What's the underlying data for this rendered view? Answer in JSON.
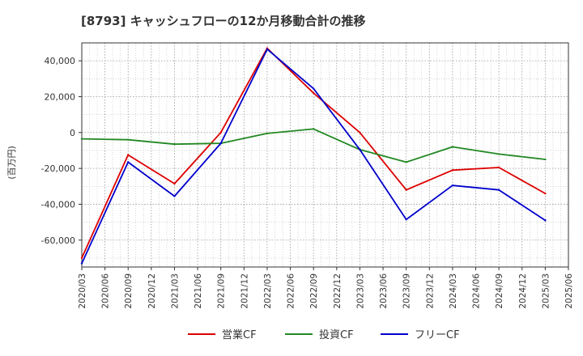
{
  "chart_data": {
    "type": "line",
    "title": "[8793]  キャッシュフローの12か月移動合計の推移",
    "ylabel": "(百万円)",
    "xlabel": "",
    "ylim": [
      -75000,
      50000
    ],
    "y_ticks": [
      40000,
      20000,
      0,
      -20000,
      -40000,
      -60000
    ],
    "y_tick_labels": [
      "40,000",
      "20,000",
      "0",
      "-20,000",
      "-40,000",
      "-60,000"
    ],
    "x_ticks": [
      "2020/03",
      "2020/06",
      "2020/09",
      "2020/12",
      "2021/03",
      "2021/06",
      "2021/09",
      "2021/12",
      "2022/03",
      "2022/06",
      "2022/09",
      "2022/12",
      "2023/03",
      "2023/06",
      "2023/09",
      "2023/12",
      "2024/03",
      "2024/06",
      "2024/09",
      "2024/12",
      "2025/03",
      "2025/06"
    ],
    "grid": true,
    "legend_position": "bottom",
    "series": [
      {
        "name": "営業CF",
        "color": "#dd0000",
        "x": [
          "2020/03",
          "2020/09",
          "2021/03",
          "2021/09",
          "2022/03",
          "2022/09",
          "2023/03",
          "2023/09",
          "2024/03",
          "2024/09",
          "2025/03"
        ],
        "values": [
          -70000,
          -12500,
          -28500,
          0,
          47000,
          22000,
          0,
          -32000,
          -21000,
          -19500,
          -34000
        ]
      },
      {
        "name": "投資CF",
        "color": "#228822",
        "x": [
          "2020/03",
          "2020/09",
          "2021/03",
          "2021/09",
          "2022/03",
          "2022/09",
          "2023/03",
          "2023/09",
          "2024/03",
          "2024/09",
          "2025/03"
        ],
        "values": [
          -3500,
          -4000,
          -6500,
          -6000,
          -500,
          2000,
          -9500,
          -16500,
          -8000,
          -12000,
          -15000
        ]
      },
      {
        "name": "フリーCF",
        "color": "#0000cc",
        "x": [
          "2020/03",
          "2020/09",
          "2021/03",
          "2021/09",
          "2022/03",
          "2022/09",
          "2023/03",
          "2023/09",
          "2024/03",
          "2024/09",
          "2025/03"
        ],
        "values": [
          -73000,
          -16500,
          -35500,
          -6000,
          46500,
          24500,
          -9500,
          -48500,
          -29500,
          -32000,
          -49000
        ]
      }
    ]
  }
}
